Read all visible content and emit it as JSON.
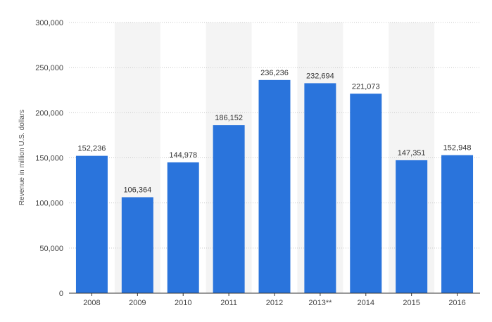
{
  "chart_data": {
    "type": "bar",
    "title": "",
    "xlabel": "",
    "ylabel": "Revenue in million U.S. dollars",
    "categories": [
      "2008",
      "2009",
      "2010",
      "2011",
      "2012",
      "2013**",
      "2014",
      "2015",
      "2016"
    ],
    "values": [
      152236,
      106364,
      144978,
      186152,
      236236,
      232694,
      221073,
      147351,
      152948
    ],
    "value_labels": [
      "152,236",
      "106,364",
      "144,978",
      "186,152",
      "236,236",
      "232,694",
      "221,073",
      "147,351",
      "152,948"
    ],
    "ylim": [
      0,
      300000
    ],
    "yticks": [
      0,
      50000,
      100000,
      150000,
      200000,
      250000,
      300000
    ],
    "ytick_labels": [
      "0",
      "50,000",
      "100,000",
      "150,000",
      "200,000",
      "250,000",
      "300,000"
    ],
    "grid": true,
    "grid_style": "dotted horizontal",
    "alternating_column_bands": true,
    "legend": "none",
    "colors": {
      "bar": "#2a74dc",
      "band": "#f4f4f4",
      "grid": "#c8c8c8",
      "axis": "#333333"
    }
  }
}
